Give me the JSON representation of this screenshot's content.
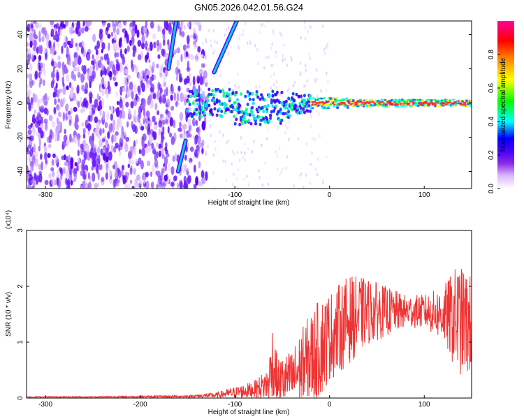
{
  "title": "GN05.2026.042.01.56.G24",
  "chart_data": [
    {
      "type": "heatmap",
      "xlabel": "Height of straight line (km)",
      "ylabel": "Frequency (Hz)",
      "xlim": [
        -320,
        150
      ],
      "ylim": [
        -50,
        48
      ],
      "x_ticks": [
        -300,
        -200,
        -100,
        0,
        100
      ],
      "y_ticks": [
        -40,
        -20,
        0,
        20,
        40
      ],
      "colorbar": {
        "label": "Normalized spectral amplitude",
        "range": [
          0,
          1
        ],
        "ticks": [
          0.0,
          0.2,
          0.4,
          0.6,
          0.8
        ],
        "colormap": [
          "#ffffff",
          "#d9b3ff",
          "#8a2be2",
          "#5a00ff",
          "#0000ff",
          "#00ffff",
          "#00ff00",
          "#ffff00",
          "#ff7f00",
          "#ff0000",
          "#ff00aa"
        ]
      },
      "features": [
        {
          "kind": "noise-cloud",
          "x_range": [
            -320,
            -150
          ],
          "y_range": [
            -50,
            48
          ]
        },
        {
          "kind": "streak",
          "from": [
            -170,
            20
          ],
          "to": [
            -162,
            48
          ]
        },
        {
          "kind": "streak",
          "from": [
            -160,
            -40
          ],
          "to": [
            -152,
            -22
          ]
        },
        {
          "kind": "streak",
          "from": [
            -122,
            18
          ],
          "to": [
            -98,
            48
          ]
        },
        {
          "kind": "carrier",
          "x_range": [
            -150,
            150
          ],
          "y": 0
        }
      ]
    },
    {
      "type": "line",
      "xlabel": "Height of straight line (km)",
      "ylabel": "SNR (10 * v/v)",
      "y_multiplier": "(x10⁴)",
      "xlim": [
        -320,
        150
      ],
      "ylim": [
        0,
        3
      ],
      "x_ticks": [
        -300,
        -200,
        -100,
        0,
        100
      ],
      "y_ticks": [
        0,
        1,
        2,
        3
      ],
      "line_color": "#ee3333",
      "envelope": [
        {
          "x": -320,
          "mean": 0.02,
          "amp": 0.01
        },
        {
          "x": -250,
          "mean": 0.02,
          "amp": 0.01
        },
        {
          "x": -150,
          "mean": 0.03,
          "amp": 0.02
        },
        {
          "x": -120,
          "mean": 0.05,
          "amp": 0.05
        },
        {
          "x": -100,
          "mean": 0.1,
          "amp": 0.1
        },
        {
          "x": -80,
          "mean": 0.15,
          "amp": 0.15
        },
        {
          "x": -65,
          "mean": 0.25,
          "amp": 0.3
        },
        {
          "x": -60,
          "mean": 0.6,
          "amp": 0.8
        },
        {
          "x": -55,
          "mean": 0.3,
          "amp": 0.4
        },
        {
          "x": -40,
          "mean": 0.35,
          "amp": 0.5
        },
        {
          "x": -25,
          "mean": 0.6,
          "amp": 0.8
        },
        {
          "x": -10,
          "mean": 0.9,
          "amp": 0.9
        },
        {
          "x": 0,
          "mean": 1.1,
          "amp": 0.8
        },
        {
          "x": 20,
          "mean": 1.4,
          "amp": 0.8
        },
        {
          "x": 40,
          "mean": 1.55,
          "amp": 0.6
        },
        {
          "x": 60,
          "mean": 1.55,
          "amp": 0.45
        },
        {
          "x": 80,
          "mean": 1.55,
          "amp": 0.3
        },
        {
          "x": 100,
          "mean": 1.55,
          "amp": 0.3
        },
        {
          "x": 120,
          "mean": 1.5,
          "amp": 0.5
        },
        {
          "x": 135,
          "mean": 1.4,
          "amp": 1.0
        },
        {
          "x": 150,
          "mean": 1.3,
          "amp": 0.9
        }
      ]
    }
  ]
}
